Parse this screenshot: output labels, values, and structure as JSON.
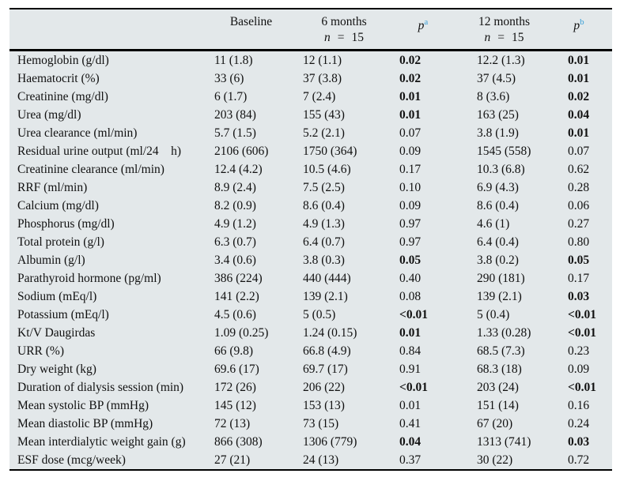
{
  "colors": {
    "table_bg": "#e3e8ea",
    "accent_blue": "#3aa0d8",
    "rule": "#000000"
  },
  "header": {
    "label": "",
    "baseline": "Baseline",
    "m6": "6 months",
    "m12": "12 months",
    "n_label": "n",
    "n_eq": "=",
    "n_value": "15",
    "p_label": "p",
    "pa_sup": "a",
    "pb_sup": "b"
  },
  "rows": [
    {
      "label": "Hemoglobin (g/dl)",
      "baseline": "11 (1.8)",
      "m6": "12 (1.1)",
      "pa": "0.02",
      "pa_bold": true,
      "m12": "12.2 (1.3)",
      "pb": "0.01",
      "pb_bold": true
    },
    {
      "label": "Haematocrit (%)",
      "baseline": "33 (6)",
      "m6": "37 (3.8)",
      "pa": "0.02",
      "pa_bold": true,
      "m12": "37 (4.5)",
      "pb": "0.01",
      "pb_bold": true
    },
    {
      "label": "Creatinine (mg/dl)",
      "baseline": "6 (1.7)",
      "m6": "7 (2.4)",
      "pa": "0.01",
      "pa_bold": true,
      "m12": "8 (3.6)",
      "pb": "0.02",
      "pb_bold": true
    },
    {
      "label": "Urea (mg/dl)",
      "baseline": "203 (84)",
      "m6": "155 (43)",
      "pa": "0.01",
      "pa_bold": true,
      "m12": "163 (25)",
      "pb": "0.04",
      "pb_bold": true
    },
    {
      "label": "Urea clearance (ml/min)",
      "baseline": "5.7 (1.5)",
      "m6": "5.2 (2.1)",
      "pa": "0.07",
      "pa_bold": false,
      "m12": "3.8 (1.9)",
      "pb": "0.01",
      "pb_bold": true
    },
    {
      "label": "Residual urine output (ml/24    h)",
      "baseline": "2106 (606)",
      "m6": "1750 (364)",
      "pa": "0.09",
      "pa_bold": false,
      "m12": "1545 (558)",
      "pb": "0.07",
      "pb_bold": false
    },
    {
      "label": "Creatinine clearance (ml/min)",
      "baseline": "12.4 (4.2)",
      "m6": "10.5 (4.6)",
      "pa": "0.17",
      "pa_bold": false,
      "m12": "10.3 (6.8)",
      "pb": "0.62",
      "pb_bold": false
    },
    {
      "label": "RRF (ml/min)",
      "baseline": "8.9 (2.4)",
      "m6": "7.5 (2.5)",
      "pa": "0.10",
      "pa_bold": false,
      "m12": "6.9 (4.3)",
      "pb": "0.28",
      "pb_bold": false
    },
    {
      "label": "Calcium (mg/dl)",
      "baseline": "8.2 (0.9)",
      "m6": "8.6 (0.4)",
      "pa": "0.09",
      "pa_bold": false,
      "m12": "8.6 (0.4)",
      "pb": "0.06",
      "pb_bold": false
    },
    {
      "label": "Phosphorus (mg/dl)",
      "baseline": "4.9 (1.2)",
      "m6": "4.9 (1.3)",
      "pa": "0.97",
      "pa_bold": false,
      "m12": "4.6 (1)",
      "pb": "0.27",
      "pb_bold": false
    },
    {
      "label": "Total protein (g/l)",
      "baseline": "6.3 (0.7)",
      "m6": "6.4 (0.7)",
      "pa": "0.97",
      "pa_bold": false,
      "m12": "6.4 (0.4)",
      "pb": "0.80",
      "pb_bold": false
    },
    {
      "label": "Albumin (g/l)",
      "baseline": "3.4 (0.6)",
      "m6": "3.8 (0.3)",
      "pa": "0.05",
      "pa_bold": true,
      "m12": "3.8 (0.2)",
      "pb": "0.05",
      "pb_bold": true
    },
    {
      "label": "Parathyroid hormone (pg/ml)",
      "baseline": "386 (224)",
      "m6": "440 (444)",
      "pa": "0.40",
      "pa_bold": false,
      "m12": "290 (181)",
      "pb": "0.17",
      "pb_bold": false
    },
    {
      "label": "Sodium (mEq/l)",
      "baseline": "141 (2.2)",
      "m6": "139 (2.1)",
      "pa": "0.08",
      "pa_bold": false,
      "m12": "139 (2.1)",
      "pb": "0.03",
      "pb_bold": true
    },
    {
      "label": "Potassium (mEq/l)",
      "baseline": "4.5 (0.6)",
      "m6": "5 (0.5)",
      "pa": "<0.01",
      "pa_bold": true,
      "m12": "5 (0.4)",
      "pb": "<0.01",
      "pb_bold": true
    },
    {
      "label": "Kt/V Daugirdas",
      "baseline": "1.09 (0.25)",
      "m6": "1.24 (0.15)",
      "pa": "0.01",
      "pa_bold": true,
      "m12": "1.33 (0.28)",
      "pb": "<0.01",
      "pb_bold": true
    },
    {
      "label": "URR (%)",
      "baseline": "66 (9.8)",
      "m6": "66.8 (4.9)",
      "pa": "0.84",
      "pa_bold": false,
      "m12": "68.5 (7.3)",
      "pb": "0.23",
      "pb_bold": false
    },
    {
      "label": "Dry weight (kg)",
      "baseline": "69.6 (17)",
      "m6": "69.7 (17)",
      "pa": "0.91",
      "pa_bold": false,
      "m12": "68.3 (18)",
      "pb": "0.09",
      "pb_bold": false
    },
    {
      "label": "Duration of dialysis session (min)",
      "baseline": "172 (26)",
      "m6": "206 (22)",
      "pa": "<0.01",
      "pa_bold": true,
      "m12": "203 (24)",
      "pb": "<0.01",
      "pb_bold": true
    },
    {
      "label": "Mean systolic BP (mmHg)",
      "baseline": "145 (12)",
      "m6": "153 (13)",
      "pa": "0.01",
      "pa_bold": false,
      "m12": "151 (14)",
      "pb": "0.16",
      "pb_bold": false
    },
    {
      "label": "Mean diastolic BP (mmHg)",
      "baseline": "72 (13)",
      "m6": "73 (15)",
      "pa": "0.41",
      "pa_bold": false,
      "m12": "67 (20)",
      "pb": "0.24",
      "pb_bold": false
    },
    {
      "label": "Mean interdialytic weight gain (g)",
      "baseline": "866 (308)",
      "m6": "1306 (779)",
      "pa": "0.04",
      "pa_bold": true,
      "m12": "1313 (741)",
      "pb": "0.03",
      "pb_bold": true
    },
    {
      "label": "ESF dose (mcg/week)",
      "baseline": "27 (21)",
      "m6": "24 (13)",
      "pa": "0.37",
      "pa_bold": false,
      "m12": "30 (22)",
      "pb": "0.72",
      "pb_bold": false
    }
  ]
}
